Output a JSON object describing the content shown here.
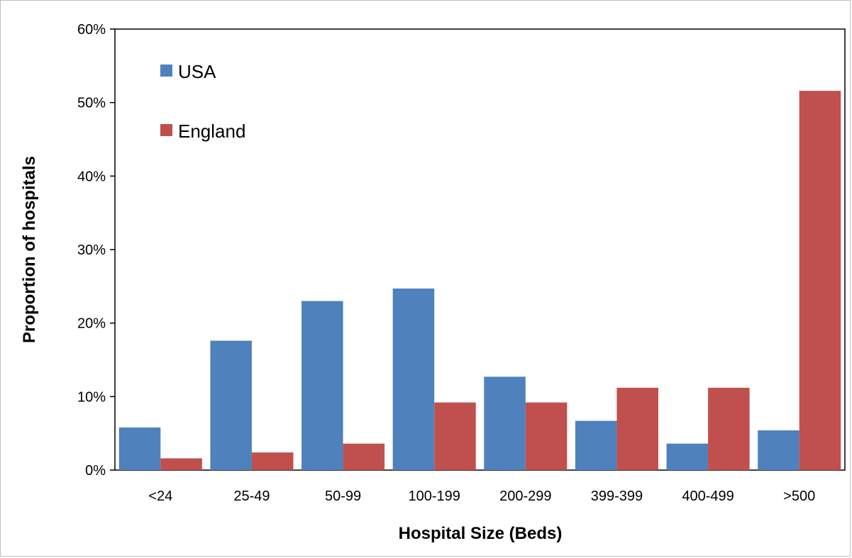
{
  "chart_data": {
    "type": "bar",
    "categories": [
      "<24",
      "25-49",
      "50-99",
      "100-199",
      "200-299",
      "399-399",
      "400-499",
      ">500"
    ],
    "series": [
      {
        "name": "USA",
        "color": "#4F81BD",
        "values": [
          5.8,
          17.6,
          23.0,
          24.7,
          12.7,
          6.7,
          3.6,
          5.4
        ]
      },
      {
        "name": "England",
        "color": "#C0504D",
        "values": [
          1.6,
          2.4,
          3.6,
          9.2,
          9.2,
          11.2,
          11.2,
          51.6
        ]
      }
    ],
    "xlabel": "Hospital Size (Beds)",
    "ylabel": "Proportion of hospitals",
    "ylim": [
      0,
      60
    ],
    "yticks": [
      "0%",
      "10%",
      "20%",
      "30%",
      "40%",
      "50%",
      "60%"
    ],
    "grid": false,
    "legend_position": "top-left"
  }
}
